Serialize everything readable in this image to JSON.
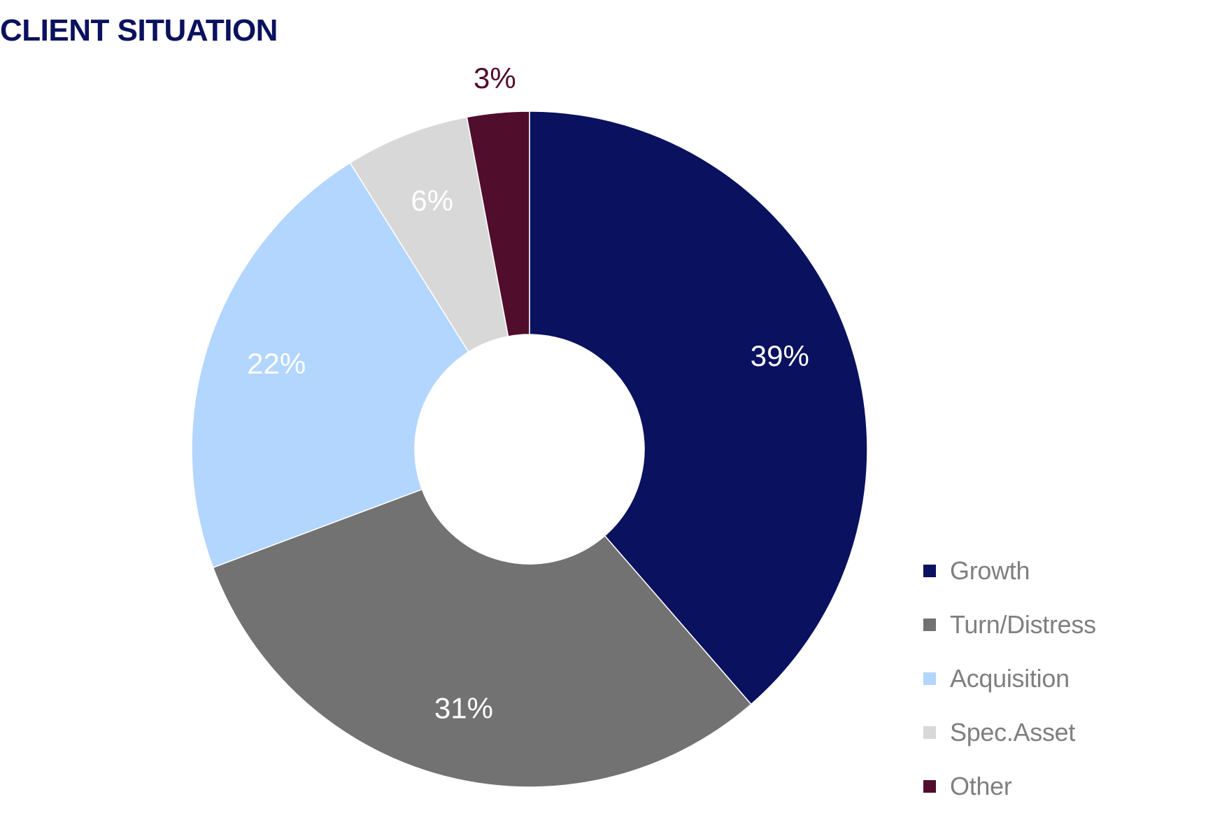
{
  "chart_data": {
    "type": "pie",
    "style": "donut",
    "title": "CLIENT SITUATION",
    "categories": [
      "Growth",
      "Turn/Distress",
      "Acquisition",
      "Spec.Asset",
      "Other"
    ],
    "values": [
      39,
      31,
      22,
      6,
      3
    ],
    "data_labels": [
      "39%",
      "31%",
      "22%",
      "6%",
      "3%"
    ],
    "colors": [
      "#0a115e",
      "#727272",
      "#b2d6ff",
      "#d8d8d8",
      "#510d2c"
    ],
    "label_colors": [
      "#ffffff",
      "#ffffff",
      "#ffffff",
      "#ffffff",
      "#510d2c"
    ],
    "start_angle_deg": 0,
    "direction": "clockwise",
    "legend_position": "bottom-right"
  },
  "theme": {
    "title_color": "#0a115e",
    "legend_text_color": "#7f7f7f",
    "background": "#ffffff"
  }
}
